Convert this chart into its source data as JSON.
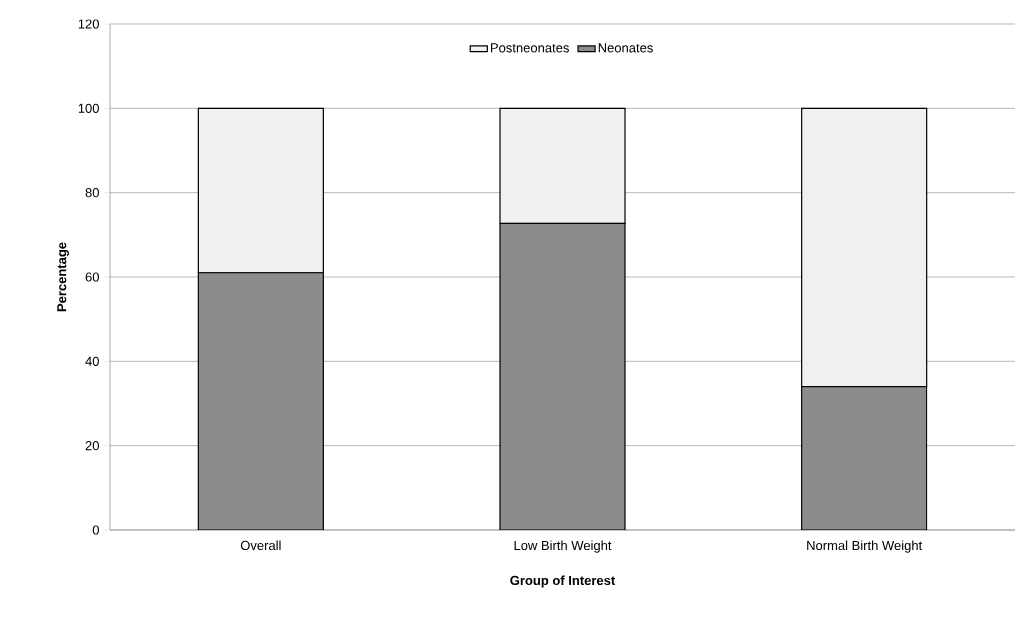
{
  "chart_data": {
    "type": "bar",
    "stacked": true,
    "xlabel": "Group of Interest",
    "ylabel": "Percentage",
    "categories": [
      "Overall",
      "Low Birth Weight",
      "Normal Birth Weight"
    ],
    "series": [
      {
        "name": "Neonates",
        "color": "#8c8c8c",
        "values": [
          61,
          72.7,
          34
        ]
      },
      {
        "name": "Postneonates",
        "color": "#f0f0f0",
        "values": [
          39,
          27.3,
          66
        ]
      }
    ],
    "ylim": [
      0,
      120
    ],
    "yticks": [
      0,
      20,
      40,
      60,
      80,
      100,
      120
    ],
    "grid": "y",
    "legend": "top"
  }
}
